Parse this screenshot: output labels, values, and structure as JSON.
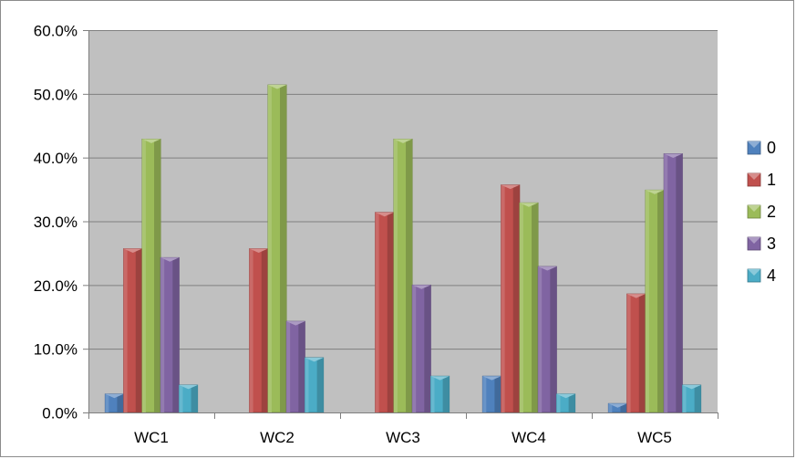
{
  "chart_data": {
    "type": "bar",
    "categories": [
      "WC1",
      "WC2",
      "WC3",
      "WC4",
      "WC5"
    ],
    "series": [
      {
        "name": "0",
        "color": "#4f81bd",
        "values": [
          2.9,
          0.0,
          0.0,
          5.7,
          1.4
        ]
      },
      {
        "name": "1",
        "color": "#c0504d",
        "values": [
          25.7,
          25.7,
          31.4,
          35.7,
          18.6
        ]
      },
      {
        "name": "2",
        "color": "#9bbb59",
        "values": [
          42.9,
          51.4,
          42.9,
          32.9,
          34.9
        ]
      },
      {
        "name": "3",
        "color": "#8064a2",
        "values": [
          24.3,
          14.3,
          20.0,
          22.9,
          40.6
        ]
      },
      {
        "name": "4",
        "color": "#4bacc6",
        "values": [
          4.3,
          8.6,
          5.7,
          2.9,
          4.3
        ]
      }
    ],
    "yticks": [
      "0.0%",
      "10.0%",
      "20.0%",
      "30.0%",
      "40.0%",
      "50.0%",
      "60.0%"
    ],
    "ylim": [
      0,
      60
    ],
    "grid": true,
    "legend": "right",
    "plot_background": "#c0c0c0"
  }
}
